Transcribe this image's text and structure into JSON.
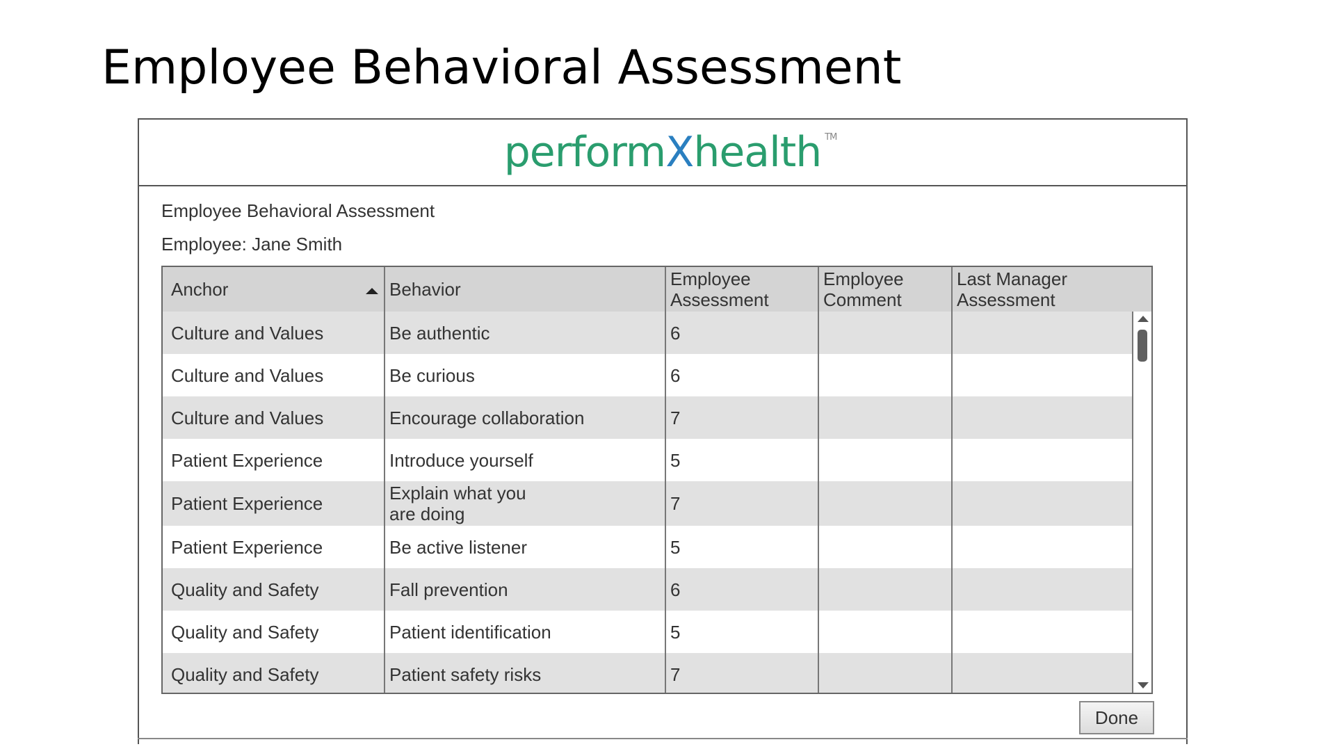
{
  "slide": {
    "title": "Employee Behavioral Assessment"
  },
  "logo": {
    "text_before": "perform",
    "text_x": "X",
    "text_after": "health",
    "tm": "TM"
  },
  "dialog": {
    "heading": "Employee Behavioral Assessment",
    "employee": "Employee: Jane Smith",
    "done_label": "Done"
  },
  "table": {
    "headers": {
      "anchor": "Anchor",
      "behavior": "Behavior",
      "employee_assessment_1": "Employee",
      "employee_assessment_2": "Assessment",
      "employee_comment_1": "Employee",
      "employee_comment_2": "Comment",
      "last_manager_1": "Last Manager",
      "last_manager_2": "Assessment"
    },
    "rows": [
      {
        "anchor": "Culture and Values",
        "behavior": "Be authentic",
        "employee_assessment": "6",
        "employee_comment": "",
        "last_manager_assessment": ""
      },
      {
        "anchor": "Culture and Values",
        "behavior": "Be curious",
        "employee_assessment": "6",
        "employee_comment": "",
        "last_manager_assessment": ""
      },
      {
        "anchor": "Culture and Values",
        "behavior": "Encourage collaboration",
        "employee_assessment": "7",
        "employee_comment": "",
        "last_manager_assessment": ""
      },
      {
        "anchor": "Patient Experience",
        "behavior": "Introduce yourself",
        "employee_assessment": "5",
        "employee_comment": "",
        "last_manager_assessment": ""
      },
      {
        "anchor": "Patient Experience",
        "behavior_line1": "Explain what you",
        "behavior_line2": "are doing",
        "employee_assessment": "7",
        "employee_comment": "",
        "last_manager_assessment": ""
      },
      {
        "anchor": "Patient Experience",
        "behavior": "Be active listener",
        "employee_assessment": "5",
        "employee_comment": "",
        "last_manager_assessment": ""
      },
      {
        "anchor": "Quality and Safety",
        "behavior": "Fall prevention",
        "employee_assessment": "6",
        "employee_comment": "",
        "last_manager_assessment": ""
      },
      {
        "anchor": "Quality and Safety",
        "behavior": "Patient identification",
        "employee_assessment": "5",
        "employee_comment": "",
        "last_manager_assessment": ""
      },
      {
        "anchor": "Quality and Safety",
        "behavior": "Patient safety risks",
        "employee_assessment": "7",
        "employee_comment": "",
        "last_manager_assessment": ""
      }
    ]
  }
}
